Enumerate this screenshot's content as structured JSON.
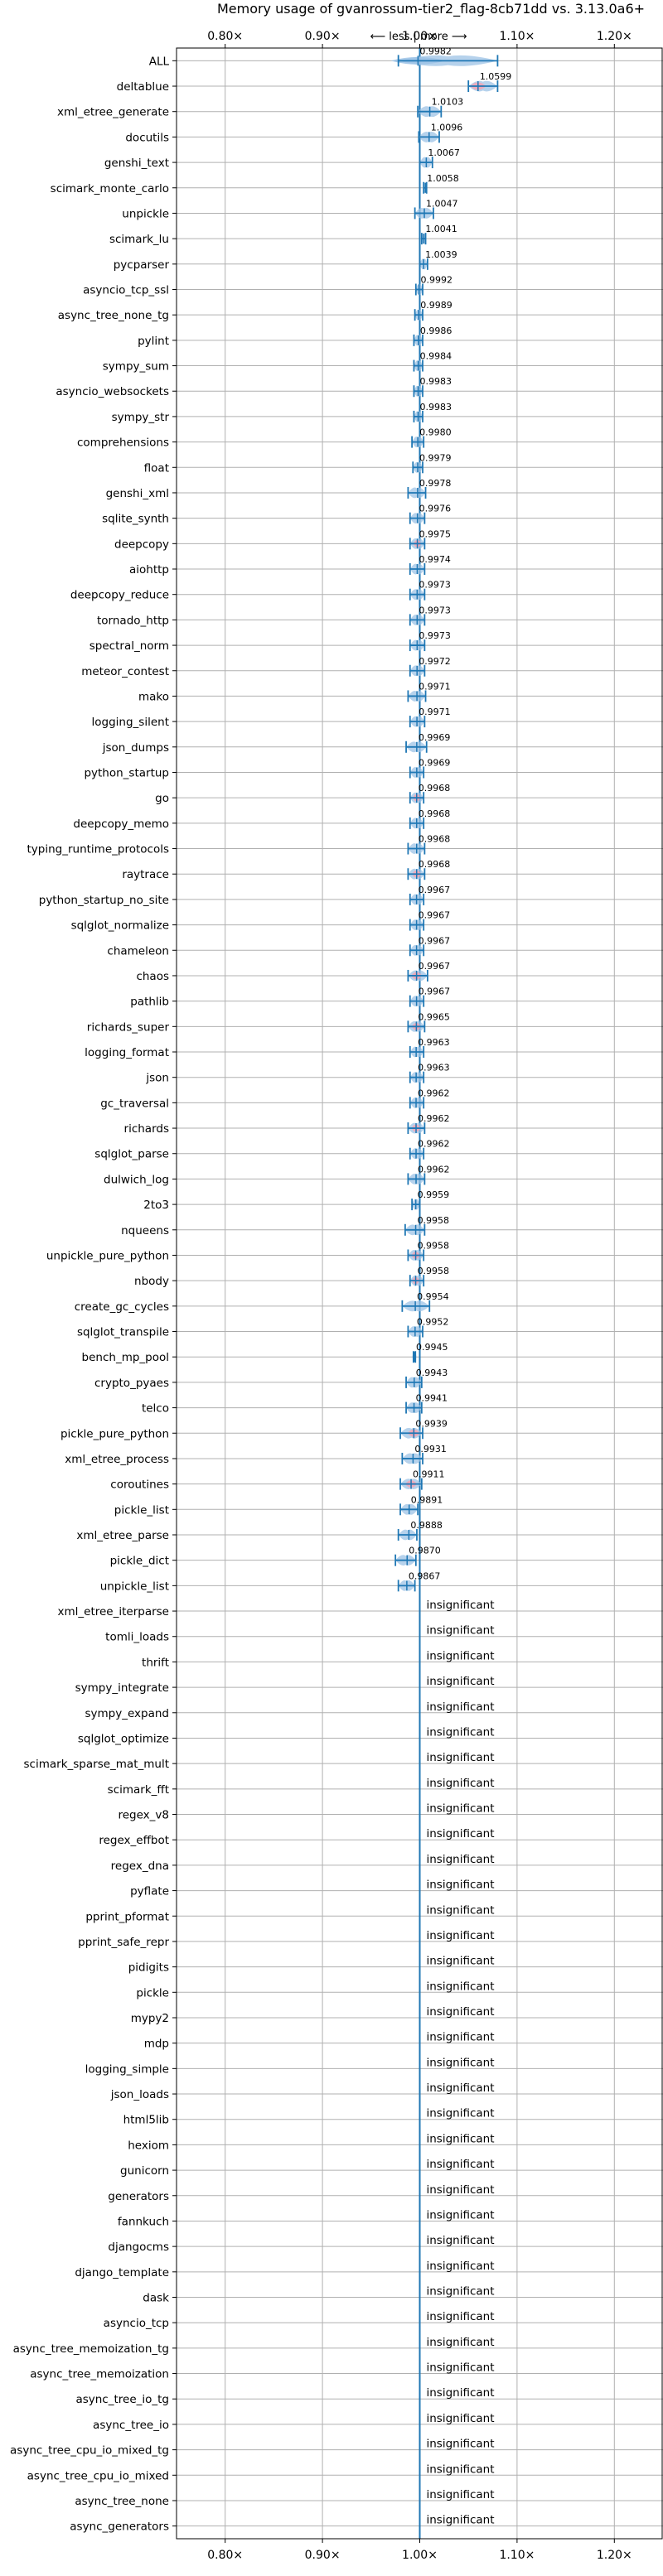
{
  "chart_data": {
    "type": "violin",
    "title": "Memory usage of gvanrossum-tier2_flag-8cb71dd vs. 3.13.0a6+",
    "direction_label": "⟵ less | more ⟶",
    "x_tick_labels": [
      "0.80×",
      "0.90×",
      "1.00×",
      "1.10×",
      "1.20×"
    ],
    "x_ticks": [
      0.8,
      0.9,
      1.0,
      1.1,
      1.2
    ],
    "xlim": [
      0.75,
      1.25
    ],
    "reference_line": 1.0,
    "insignificant_label": "insignificant",
    "colors": {
      "faster": "#1f77b4",
      "faster_fill": "#9dc3e6",
      "slower_fill": "#f4a4b4",
      "grid": "#b0b0b0"
    },
    "benchmarks": [
      {
        "name": "ALL",
        "value": 0.9982,
        "label": "0.9982",
        "err": [
          0.978,
          1.08
        ],
        "status": "mixed"
      },
      {
        "name": "deltablue",
        "value": 1.0599,
        "label": "1.0599",
        "err": [
          1.05,
          1.08
        ],
        "status": "slower"
      },
      {
        "name": "xml_etree_generate",
        "value": 1.0103,
        "label": "1.0103",
        "err": [
          0.998,
          1.022
        ],
        "status": "faster"
      },
      {
        "name": "docutils",
        "value": 1.0096,
        "label": "1.0096",
        "err": [
          0.999,
          1.02
        ],
        "status": "faster"
      },
      {
        "name": "genshi_text",
        "value": 1.0067,
        "label": "1.0067",
        "err": [
          1.0,
          1.013
        ],
        "status": "faster"
      },
      {
        "name": "scimark_monte_carlo",
        "value": 1.0058,
        "label": "1.0058",
        "err": [
          1.004,
          1.007
        ],
        "status": "faster"
      },
      {
        "name": "unpickle",
        "value": 1.0047,
        "label": "1.0047",
        "err": [
          0.995,
          1.014
        ],
        "status": "faster"
      },
      {
        "name": "scimark_lu",
        "value": 1.0041,
        "label": "1.0041",
        "err": [
          1.002,
          1.006
        ],
        "status": "faster"
      },
      {
        "name": "pycparser",
        "value": 1.0039,
        "label": "1.0039",
        "err": [
          1.0,
          1.008
        ],
        "status": "faster"
      },
      {
        "name": "asyncio_tcp_ssl",
        "value": 0.9992,
        "label": "0.9992",
        "err": [
          0.996,
          1.003
        ],
        "status": "faster"
      },
      {
        "name": "async_tree_none_tg",
        "value": 0.9989,
        "label": "0.9989",
        "err": [
          0.995,
          1.003
        ],
        "status": "faster"
      },
      {
        "name": "pylint",
        "value": 0.9986,
        "label": "0.9986",
        "err": [
          0.994,
          1.003
        ],
        "status": "faster"
      },
      {
        "name": "sympy_sum",
        "value": 0.9984,
        "label": "0.9984",
        "err": [
          0.994,
          1.003
        ],
        "status": "faster"
      },
      {
        "name": "asyncio_websockets",
        "value": 0.9983,
        "label": "0.9983",
        "err": [
          0.994,
          1.003
        ],
        "status": "faster"
      },
      {
        "name": "sympy_str",
        "value": 0.9983,
        "label": "0.9983",
        "err": [
          0.994,
          1.003
        ],
        "status": "faster"
      },
      {
        "name": "comprehensions",
        "value": 0.998,
        "label": "0.9980",
        "err": [
          0.992,
          1.004
        ],
        "status": "faster"
      },
      {
        "name": "float",
        "value": 0.9979,
        "label": "0.9979",
        "err": [
          0.993,
          1.003
        ],
        "status": "faster"
      },
      {
        "name": "genshi_xml",
        "value": 0.9978,
        "label": "0.9978",
        "err": [
          0.988,
          1.006
        ],
        "status": "faster"
      },
      {
        "name": "sqlite_synth",
        "value": 0.9976,
        "label": "0.9976",
        "err": [
          0.99,
          1.005
        ],
        "status": "faster"
      },
      {
        "name": "deepcopy",
        "value": 0.9975,
        "label": "0.9975",
        "err": [
          0.99,
          1.005
        ],
        "status": "slower"
      },
      {
        "name": "aiohttp",
        "value": 0.9974,
        "label": "0.9974",
        "err": [
          0.99,
          1.005
        ],
        "status": "faster"
      },
      {
        "name": "deepcopy_reduce",
        "value": 0.9973,
        "label": "0.9973",
        "err": [
          0.99,
          1.005
        ],
        "status": "faster"
      },
      {
        "name": "tornado_http",
        "value": 0.9973,
        "label": "0.9973",
        "err": [
          0.99,
          1.005
        ],
        "status": "faster"
      },
      {
        "name": "spectral_norm",
        "value": 0.9973,
        "label": "0.9973",
        "err": [
          0.99,
          1.005
        ],
        "status": "faster"
      },
      {
        "name": "meteor_contest",
        "value": 0.9972,
        "label": "0.9972",
        "err": [
          0.99,
          1.005
        ],
        "status": "faster"
      },
      {
        "name": "mako",
        "value": 0.9971,
        "label": "0.9971",
        "err": [
          0.988,
          1.006
        ],
        "status": "faster"
      },
      {
        "name": "logging_silent",
        "value": 0.9971,
        "label": "0.9971",
        "err": [
          0.99,
          1.005
        ],
        "status": "faster"
      },
      {
        "name": "json_dumps",
        "value": 0.9969,
        "label": "0.9969",
        "err": [
          0.986,
          1.007
        ],
        "status": "faster"
      },
      {
        "name": "python_startup",
        "value": 0.9969,
        "label": "0.9969",
        "err": [
          0.99,
          1.004
        ],
        "status": "faster"
      },
      {
        "name": "go",
        "value": 0.9968,
        "label": "0.9968",
        "err": [
          0.99,
          1.004
        ],
        "status": "slower"
      },
      {
        "name": "deepcopy_memo",
        "value": 0.9968,
        "label": "0.9968",
        "err": [
          0.99,
          1.004
        ],
        "status": "faster"
      },
      {
        "name": "typing_runtime_protocols",
        "value": 0.9968,
        "label": "0.9968",
        "err": [
          0.988,
          1.005
        ],
        "status": "faster"
      },
      {
        "name": "raytrace",
        "value": 0.9968,
        "label": "0.9968",
        "err": [
          0.988,
          1.005
        ],
        "status": "slower"
      },
      {
        "name": "python_startup_no_site",
        "value": 0.9967,
        "label": "0.9967",
        "err": [
          0.99,
          1.004
        ],
        "status": "faster"
      },
      {
        "name": "sqlglot_normalize",
        "value": 0.9967,
        "label": "0.9967",
        "err": [
          0.99,
          1.004
        ],
        "status": "faster"
      },
      {
        "name": "chameleon",
        "value": 0.9967,
        "label": "0.9967",
        "err": [
          0.99,
          1.004
        ],
        "status": "faster"
      },
      {
        "name": "chaos",
        "value": 0.9967,
        "label": "0.9967",
        "err": [
          0.988,
          1.008
        ],
        "status": "slower"
      },
      {
        "name": "pathlib",
        "value": 0.9967,
        "label": "0.9967",
        "err": [
          0.99,
          1.004
        ],
        "status": "faster"
      },
      {
        "name": "richards_super",
        "value": 0.9965,
        "label": "0.9965",
        "err": [
          0.988,
          1.005
        ],
        "status": "slower"
      },
      {
        "name": "logging_format",
        "value": 0.9963,
        "label": "0.9963",
        "err": [
          0.99,
          1.004
        ],
        "status": "faster"
      },
      {
        "name": "json",
        "value": 0.9963,
        "label": "0.9963",
        "err": [
          0.99,
          1.004
        ],
        "status": "faster"
      },
      {
        "name": "gc_traversal",
        "value": 0.9962,
        "label": "0.9962",
        "err": [
          0.99,
          1.004
        ],
        "status": "faster"
      },
      {
        "name": "richards",
        "value": 0.9962,
        "label": "0.9962",
        "err": [
          0.988,
          1.005
        ],
        "status": "slower"
      },
      {
        "name": "sqlglot_parse",
        "value": 0.9962,
        "label": "0.9962",
        "err": [
          0.99,
          1.004
        ],
        "status": "faster"
      },
      {
        "name": "dulwich_log",
        "value": 0.9962,
        "label": "0.9962",
        "err": [
          0.988,
          1.005
        ],
        "status": "faster"
      },
      {
        "name": "2to3",
        "value": 0.9959,
        "label": "0.9959",
        "err": [
          0.992,
          1.0
        ],
        "status": "faster"
      },
      {
        "name": "nqueens",
        "value": 0.9958,
        "label": "0.9958",
        "err": [
          0.985,
          1.005
        ],
        "status": "faster"
      },
      {
        "name": "unpickle_pure_python",
        "value": 0.9958,
        "label": "0.9958",
        "err": [
          0.988,
          1.004
        ],
        "status": "slower"
      },
      {
        "name": "nbody",
        "value": 0.9958,
        "label": "0.9958",
        "err": [
          0.99,
          1.004
        ],
        "status": "slower"
      },
      {
        "name": "create_gc_cycles",
        "value": 0.9954,
        "label": "0.9954",
        "err": [
          0.982,
          1.01
        ],
        "status": "faster"
      },
      {
        "name": "sqlglot_transpile",
        "value": 0.9952,
        "label": "0.9952",
        "err": [
          0.988,
          1.003
        ],
        "status": "faster"
      },
      {
        "name": "bench_mp_pool",
        "value": 0.9945,
        "label": "0.9945",
        "err": [
          0.9935,
          0.9955
        ],
        "status": "faster"
      },
      {
        "name": "crypto_pyaes",
        "value": 0.9943,
        "label": "0.9943",
        "err": [
          0.986,
          1.002
        ],
        "status": "faster"
      },
      {
        "name": "telco",
        "value": 0.9941,
        "label": "0.9941",
        "err": [
          0.986,
          1.002
        ],
        "status": "faster"
      },
      {
        "name": "pickle_pure_python",
        "value": 0.9939,
        "label": "0.9939",
        "err": [
          0.98,
          1.003
        ],
        "status": "slower"
      },
      {
        "name": "xml_etree_process",
        "value": 0.9931,
        "label": "0.9931",
        "err": [
          0.982,
          1.003
        ],
        "status": "faster"
      },
      {
        "name": "coroutines",
        "value": 0.9911,
        "label": "0.9911",
        "err": [
          0.98,
          1.002
        ],
        "status": "slower"
      },
      {
        "name": "pickle_list",
        "value": 0.9891,
        "label": "0.9891",
        "err": [
          0.98,
          0.998
        ],
        "status": "faster"
      },
      {
        "name": "xml_etree_parse",
        "value": 0.9888,
        "label": "0.9888",
        "err": [
          0.978,
          0.997
        ],
        "status": "faster"
      },
      {
        "name": "pickle_dict",
        "value": 0.987,
        "label": "0.9870",
        "err": [
          0.975,
          0.996
        ],
        "status": "faster"
      },
      {
        "name": "unpickle_list",
        "value": 0.9867,
        "label": "0.9867",
        "err": [
          0.978,
          0.995
        ],
        "status": "faster"
      },
      {
        "name": "xml_etree_iterparse",
        "status": "insignificant"
      },
      {
        "name": "tomli_loads",
        "status": "insignificant"
      },
      {
        "name": "thrift",
        "status": "insignificant"
      },
      {
        "name": "sympy_integrate",
        "status": "insignificant"
      },
      {
        "name": "sympy_expand",
        "status": "insignificant"
      },
      {
        "name": "sqlglot_optimize",
        "status": "insignificant"
      },
      {
        "name": "scimark_sparse_mat_mult",
        "status": "insignificant"
      },
      {
        "name": "scimark_fft",
        "status": "insignificant"
      },
      {
        "name": "regex_v8",
        "status": "insignificant"
      },
      {
        "name": "regex_effbot",
        "status": "insignificant"
      },
      {
        "name": "regex_dna",
        "status": "insignificant"
      },
      {
        "name": "pyflate",
        "status": "insignificant"
      },
      {
        "name": "pprint_pformat",
        "status": "insignificant"
      },
      {
        "name": "pprint_safe_repr",
        "status": "insignificant"
      },
      {
        "name": "pidigits",
        "status": "insignificant"
      },
      {
        "name": "pickle",
        "status": "insignificant"
      },
      {
        "name": "mypy2",
        "status": "insignificant"
      },
      {
        "name": "mdp",
        "status": "insignificant"
      },
      {
        "name": "logging_simple",
        "status": "insignificant"
      },
      {
        "name": "json_loads",
        "status": "insignificant"
      },
      {
        "name": "html5lib",
        "status": "insignificant"
      },
      {
        "name": "hexiom",
        "status": "insignificant"
      },
      {
        "name": "gunicorn",
        "status": "insignificant"
      },
      {
        "name": "generators",
        "status": "insignificant"
      },
      {
        "name": "fannkuch",
        "status": "insignificant"
      },
      {
        "name": "djangocms",
        "status": "insignificant"
      },
      {
        "name": "django_template",
        "status": "insignificant"
      },
      {
        "name": "dask",
        "status": "insignificant"
      },
      {
        "name": "asyncio_tcp",
        "status": "insignificant"
      },
      {
        "name": "async_tree_memoization_tg",
        "status": "insignificant"
      },
      {
        "name": "async_tree_memoization",
        "status": "insignificant"
      },
      {
        "name": "async_tree_io_tg",
        "status": "insignificant"
      },
      {
        "name": "async_tree_io",
        "status": "insignificant"
      },
      {
        "name": "async_tree_cpu_io_mixed_tg",
        "status": "insignificant"
      },
      {
        "name": "async_tree_cpu_io_mixed",
        "status": "insignificant"
      },
      {
        "name": "async_tree_none",
        "status": "insignificant"
      },
      {
        "name": "async_generators",
        "status": "insignificant"
      }
    ]
  }
}
